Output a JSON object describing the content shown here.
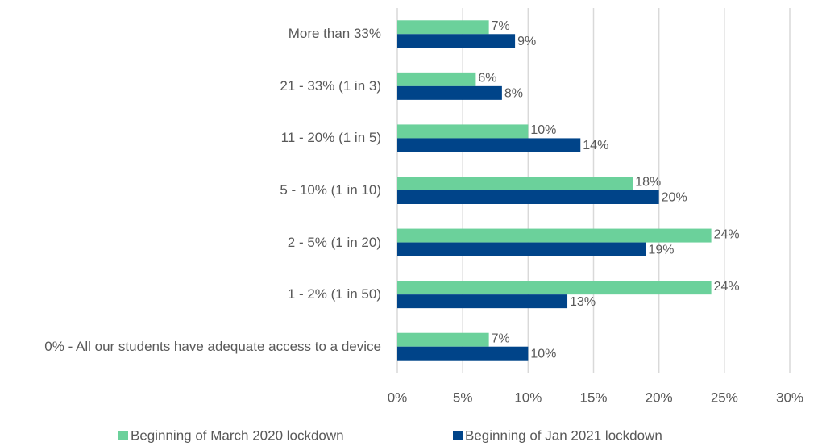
{
  "chart_data": {
    "type": "hbar",
    "categories": [
      "More than 33%",
      "21 - 33% (1 in 3)",
      "11 - 20% (1 in 5)",
      "5 - 10% (1 in 10)",
      "2 - 5% (1 in 20)",
      "1 - 2% (1 in 50)",
      "0% - All our students have adequate access to a device"
    ],
    "series": [
      {
        "name": "Beginning of March 2020 lockdown",
        "color": "#6bd19b",
        "values": [
          7,
          6,
          10,
          18,
          24,
          24,
          7
        ],
        "value_labels": [
          "7%",
          "6%",
          "10%",
          "18%",
          "24%",
          "24%",
          "7%"
        ]
      },
      {
        "name": "Beginning of Jan 2021 lockdown",
        "color": "#004489",
        "values": [
          9,
          8,
          14,
          20,
          19,
          13,
          10
        ],
        "value_labels": [
          "9%",
          "8%",
          "14%",
          "20%",
          "19%",
          "13%",
          "10%"
        ]
      }
    ],
    "xlim": [
      0,
      30
    ],
    "xticks": [
      {
        "value": 0,
        "label": "0%"
      },
      {
        "value": 5,
        "label": "5%"
      },
      {
        "value": 10,
        "label": "10%"
      },
      {
        "value": 15,
        "label": "15%"
      },
      {
        "value": 20,
        "label": "20%"
      },
      {
        "value": 25,
        "label": "25%"
      },
      {
        "value": 30,
        "label": "30%"
      }
    ],
    "grid": true,
    "legend": "bottom"
  }
}
